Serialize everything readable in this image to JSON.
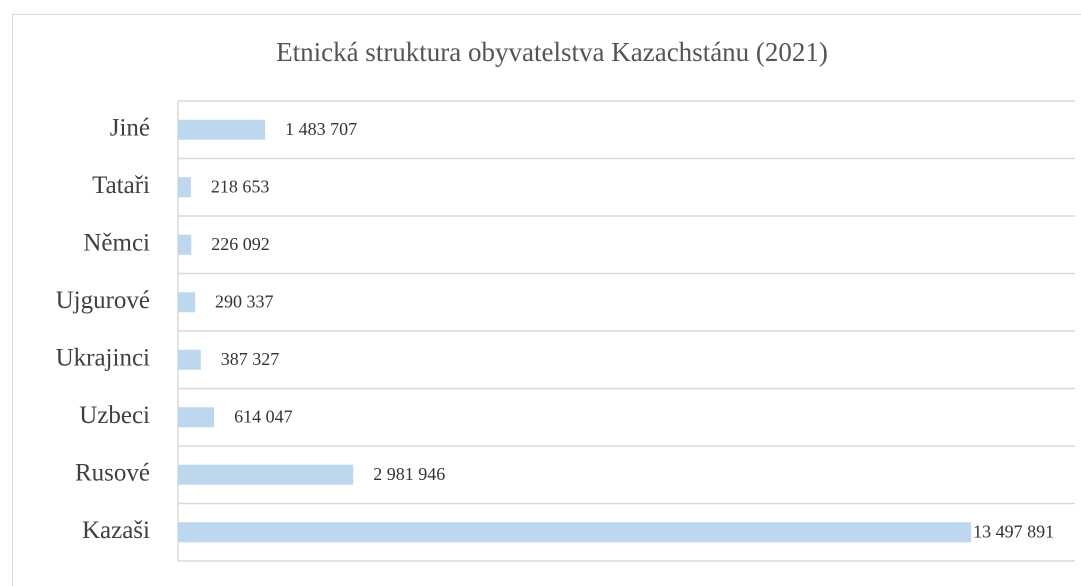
{
  "chart_data": {
    "type": "bar",
    "orientation": "horizontal",
    "title": "Etnická struktura obyvatelstva Kazachstánu (2021)",
    "categories": [
      "Jiné",
      "Tataři",
      "Němci",
      "Ujgurové",
      "Ukrajinci",
      "Uzbeci",
      "Rusové",
      "Kazaši"
    ],
    "values": [
      1483707,
      218653,
      226092,
      290337,
      387327,
      614047,
      2981946,
      13497891
    ],
    "value_labels": [
      "1 483 707",
      "218 653",
      "226 092",
      "290 337",
      "387 327",
      "614 047",
      "2 981 946",
      "13 497 891"
    ],
    "color": "#bdd7ee",
    "xlim": [
      0,
      14500000
    ]
  }
}
